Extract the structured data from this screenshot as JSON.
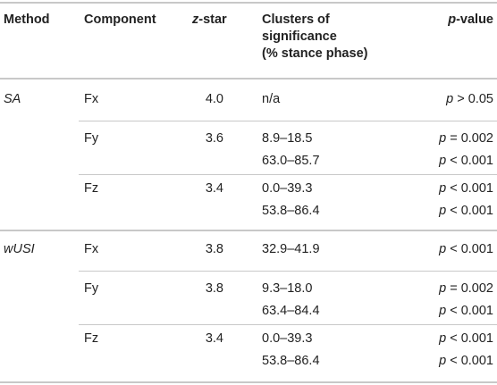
{
  "header": {
    "method": "Method",
    "component": "Component",
    "zstar_prefix": "z",
    "zstar_suffix": "-star",
    "clusters_line1": "Clusters of",
    "clusters_line2": "significance",
    "clusters_line3": "(% stance phase)",
    "pvalue_prefix": "p",
    "pvalue_suffix": "-value"
  },
  "groups": [
    {
      "method": "SA",
      "rows": [
        {
          "component": "Fx",
          "zstar": "4.0",
          "clusters": [
            "n/a"
          ],
          "p_symbol": [
            "p"
          ],
          "p_rest": [
            "> 0.05"
          ]
        },
        {
          "component": "Fy",
          "zstar": "3.6",
          "clusters": [
            "8.9–18.5",
            "63.0–85.7"
          ],
          "p_symbol": [
            "p",
            "p"
          ],
          "p_rest": [
            "= 0.002",
            "< 0.001"
          ]
        },
        {
          "component": "Fz",
          "zstar": "3.4",
          "clusters": [
            "0.0–39.3",
            "53.8–86.4"
          ],
          "p_symbol": [
            "p",
            "p"
          ],
          "p_rest": [
            "< 0.001",
            "< 0.001"
          ]
        }
      ]
    },
    {
      "method": "wUSI",
      "rows": [
        {
          "component": "Fx",
          "zstar": "3.8",
          "clusters": [
            "32.9–41.9"
          ],
          "p_symbol": [
            "p"
          ],
          "p_rest": [
            "< 0.001"
          ]
        },
        {
          "component": "Fy",
          "zstar": "3.8",
          "clusters": [
            "9.3–18.0",
            "63.4–84.4"
          ],
          "p_symbol": [
            "p",
            "p"
          ],
          "p_rest": [
            "= 0.002",
            "< 0.001"
          ]
        },
        {
          "component": "Fz",
          "zstar": "3.4",
          "clusters": [
            "0.0–39.3",
            "53.8–86.4"
          ],
          "p_symbol": [
            "p",
            "p"
          ],
          "p_rest": [
            "< 0.001",
            "< 0.001"
          ]
        }
      ]
    }
  ]
}
